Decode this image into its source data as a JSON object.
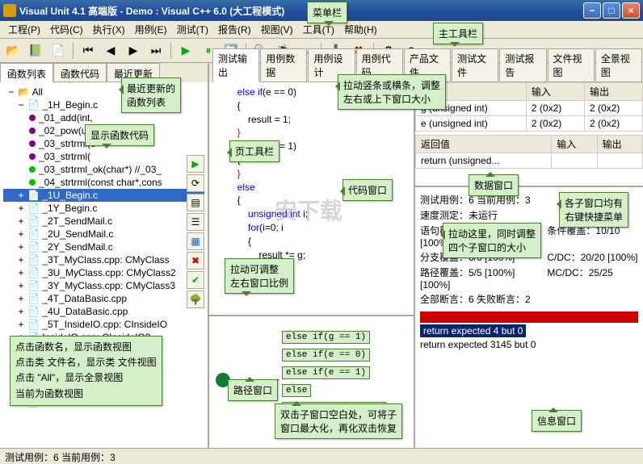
{
  "window": {
    "title": "Visual Unit 4.1 高端版 - Demo : Visual C++ 6.0 (大工程模式)"
  },
  "menu": [
    "工程(P)",
    "代码(C)",
    "执行(X)",
    "用例(E)",
    "测试(T)",
    "报告(R)",
    "视图(V)",
    "工具(T)",
    "帮助(H)"
  ],
  "leftTabs": [
    "函数列表",
    "函数代码",
    "最近更新"
  ],
  "tree": {
    "root": "All",
    "items": [
      {
        "exp": "−",
        "label": "_1H_Begin.c",
        "kind": "file"
      },
      {
        "indent": 1,
        "dot": "#800080",
        "label": "_01_add(int,"
      },
      {
        "indent": 1,
        "dot": "#800080",
        "label": "_02_pow(unsig"
      },
      {
        "indent": 1,
        "dot": "#800080",
        "label": "_03_strtrml(c"
      },
      {
        "indent": 1,
        "dot": "#800080",
        "label": "_03_strtrml("
      },
      {
        "indent": 1,
        "dot": "#00c000",
        "label": "_03_strtrml_ok(char*) //_03_"
      },
      {
        "indent": 1,
        "dot": "#00c000",
        "label": "_04_strtrml(const char*,cons"
      },
      {
        "exp": "+",
        "label": "_1U_Begin.c",
        "sel": true
      },
      {
        "exp": "+",
        "label": "_1Y_Begin.c"
      },
      {
        "exp": "+",
        "label": "_2T_SendMail.c"
      },
      {
        "exp": "+",
        "label": "_2U_SendMail.c"
      },
      {
        "exp": "+",
        "label": "_2Y_SendMail.c"
      },
      {
        "exp": "+",
        "label": "_3T_MyClass.cpp: CMyClass"
      },
      {
        "exp": "+",
        "label": "_3U_MyClass.cpp: CMyClass2"
      },
      {
        "exp": "+",
        "label": "_3Y_MyClass.cpp: CMyClass3"
      },
      {
        "exp": "+",
        "label": "_4T_DataBasic.cpp"
      },
      {
        "exp": "+",
        "label": "_4U_DataBasic.cpp"
      },
      {
        "exp": "+",
        "label": "_5T_InsideIO.cpp: CInsideIO"
      },
      {
        "exp": "+",
        "label": "InsideIO.cpp: CInsideIO2"
      },
      {
        "exp": "+",
        "label": "hiteBox.cpp: CWhiteBox"
      },
      {
        "exp": "+",
        "label": "hiteBox.cpp: CWhiteBox2"
      },
      {
        "exp": "+",
        "label": "tCaseCode.cpp"
      },
      {
        "exp": "+",
        "label": "aseCode.cpp"
      },
      {
        "exp": "+",
        "label": ".c"
      }
    ]
  },
  "rightTabs": [
    "测试输出",
    "用例数据",
    "用例设计",
    "用例代码",
    "产品文件",
    "测试文件",
    "测试报告",
    "文件视图",
    "全景视图"
  ],
  "code": [
    {
      "indent": 2,
      "text": "else if(e == 0)",
      "kw": [
        "else",
        "if"
      ]
    },
    {
      "indent": 2,
      "text": "{"
    },
    {
      "indent": 3,
      "text": "result = 1;"
    },
    {
      "indent": 2,
      "text": "}",
      "color": "#c00"
    },
    {
      "indent": 2,
      "text": "else if(e == 1)",
      "kw": [
        "else",
        "if"
      ]
    },
    {
      "indent": 2,
      "text": "{"
    },
    {
      "indent": 0,
      "text": ""
    },
    {
      "indent": 2,
      "text": "}",
      "color": "#c00"
    },
    {
      "indent": 2,
      "text": "else",
      "kw": [
        "else"
      ]
    },
    {
      "indent": 2,
      "text": "{"
    },
    {
      "indent": 3,
      "text": "unsigned int i;",
      "kw": [
        "unsigned",
        "int"
      ]
    },
    {
      "indent": 3,
      "text": "for(i=0; i<e; i++)",
      "kw": [
        "for"
      ]
    },
    {
      "indent": 3,
      "text": "{"
    },
    {
      "indent": 4,
      "text": "result *= g;"
    },
    {
      "indent": 3,
      "text": "}"
    }
  ],
  "dataTable": {
    "headers": [
      "参数",
      "输入",
      "输出"
    ],
    "rows": [
      [
        "g (unsigned int)",
        "2 (0x2)",
        "2 (0x2)"
      ],
      [
        "e (unsigned int)",
        "2 (0x2)",
        "2 (0x2)"
      ]
    ],
    "retHeaders": [
      "返回值",
      "输入",
      "输出"
    ],
    "retRow": [
      "return (unsigned...",
      "",
      ""
    ]
  },
  "info": {
    "l1": "测试用例：6  当前用例：3",
    "l2": "速度测定：未运行",
    "l3a": "语句覆盖：9/9 [100%]",
    "l3b": "条件覆盖：10/10 [100%]",
    "l4a": "分支覆盖：6/6 [100%]",
    "l4b": "C/DC：20/20 [100%]",
    "l5a": "路径覆盖：5/5 [100%]",
    "l5b": "MC/DC：25/25 [100%]",
    "l6": "全部断言：6  失败断言：2",
    "fail1": "return expected 4 but 0",
    "fail2": "return expected 3145 but 0"
  },
  "pathBranches": [
    "else if(g == 1)",
    "else if(e == 0)",
    "else if(e == 1)",
    "else",
    "for(i=0; i<e; i++)"
  ],
  "callouts": {
    "menubar": "菜单栏",
    "maintoolbar": "主工具栏",
    "recentlist": "最近更新的\n函数列表",
    "showcode": "显示函数代码",
    "pagetoolbar": "页工具栏",
    "dragbar": "拉动竖条或横条，调整\n左右或上下窗口大小",
    "codewin": "代码窗口",
    "datawin": "数据窗口",
    "rightclick": "各子窗口均有\n右键快捷菜单",
    "dragcenter": "拉动这里，同时调整\n四个子窗口的大小",
    "dragsplit": "拉动可调整\n左右窗口比例",
    "pathwin": "路径窗口",
    "dblclick": "双击子窗口空白处，可将子\n窗口最大化，再化双击恢复",
    "infowin": "信息窗口",
    "clickfn": "点击函数名，显示函数视图\n点击类 文件名，显示类 文件视图\n点击 \"All\"，显示全景视图\n当前为函数视图"
  },
  "statusBar": "测试用例：6  当前用例：3",
  "watermark": "安下载"
}
